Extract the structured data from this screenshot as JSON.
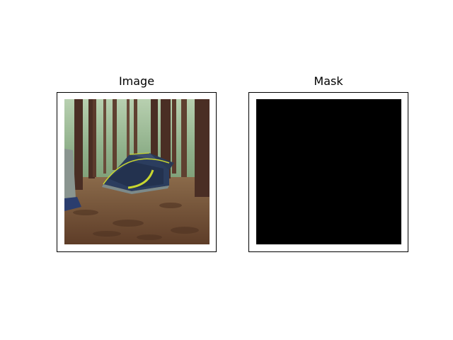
{
  "panels": [
    {
      "title": "Image"
    },
    {
      "title": "Mask"
    }
  ],
  "colors": {
    "background": "#ffffff",
    "frame": "#000000",
    "mask_fill": "#000000",
    "forest_canopy": "#8fb08a",
    "forest_floor": "#6e4a33",
    "tent_body": "#2b3d5e",
    "tent_accent": "#c8d630"
  },
  "icons": {
    "image_content": "forest-tent-photo",
    "mask_content": "solid-black-mask"
  }
}
